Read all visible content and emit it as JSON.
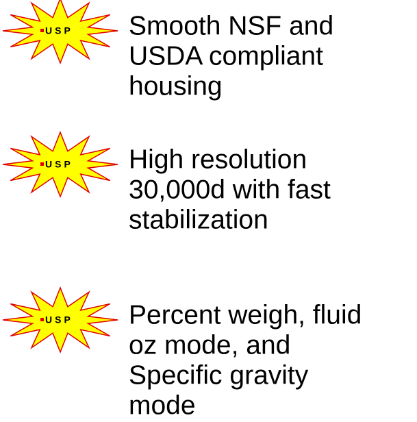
{
  "items": [
    {
      "badge": "USP",
      "lines": [
        "Smooth NSF and",
        "USDA compliant",
        "housing"
      ]
    },
    {
      "badge": "USP",
      "lines": [
        "High resolution",
        "30,000d with fast",
        "stabilization"
      ]
    },
    {
      "badge": "USP",
      "lines": [
        "Percent weigh, fluid",
        "oz mode, and",
        "Specific gravity",
        "mode"
      ]
    }
  ]
}
